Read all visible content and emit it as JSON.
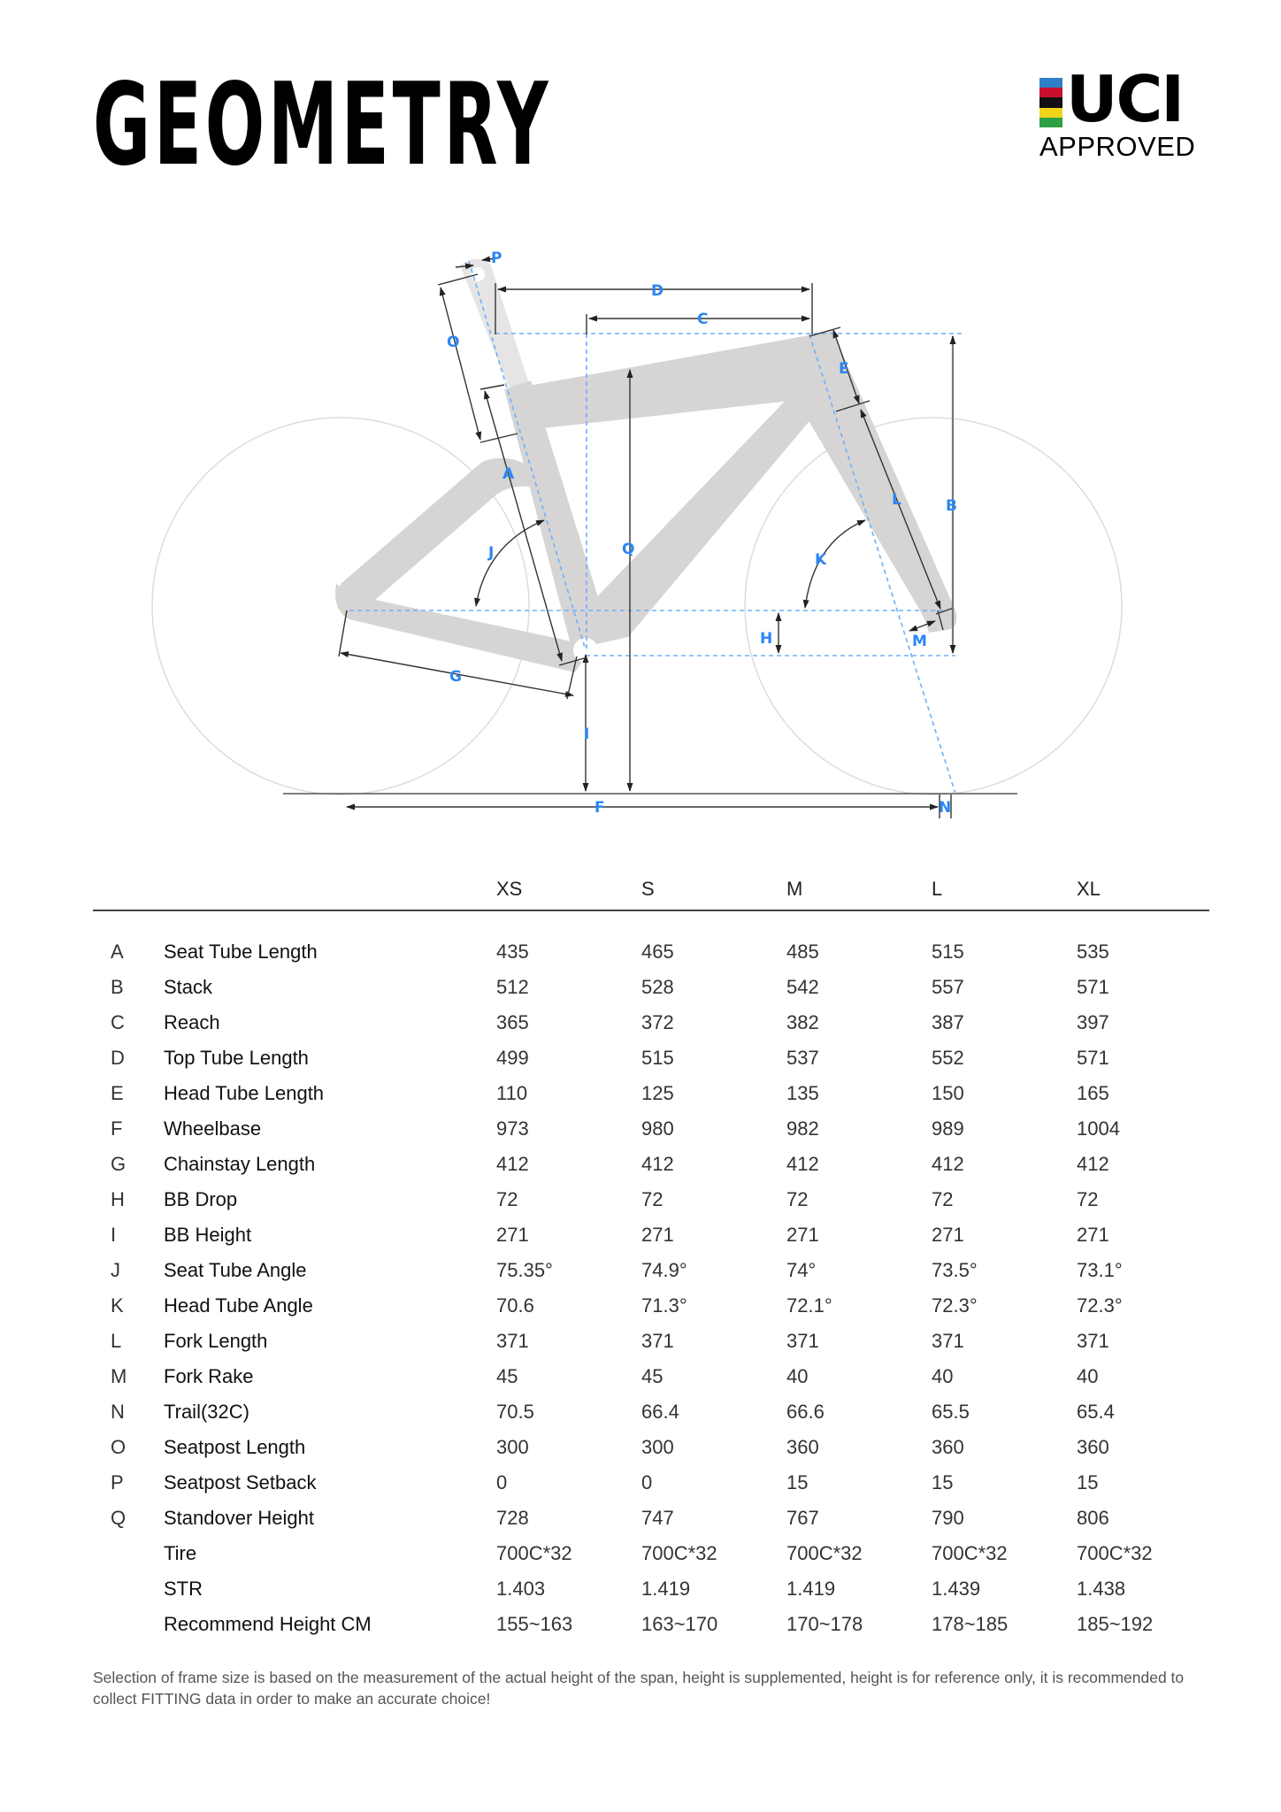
{
  "header": {
    "title": "GEOMETRY",
    "badge": {
      "brand": "UCI",
      "status": "APPROVED",
      "stripe_colors": [
        "#2f7fc6",
        "#c8102e",
        "#111111",
        "#f2d21a",
        "#2ea043"
      ]
    }
  },
  "diagram": {
    "labels": {
      "A": "A",
      "B": "B",
      "C": "C",
      "D": "D",
      "E": "E",
      "F": "F",
      "G": "G",
      "H": "H",
      "I": "I",
      "J": "J",
      "K": "K",
      "L": "L",
      "M": "M",
      "N": "N",
      "O": "O",
      "P": "P",
      "Q": "Q"
    },
    "label_color": "#2b86f4",
    "frame_color": "#d6d5d4"
  },
  "table": {
    "sizes": [
      "XS",
      "S",
      "M",
      "L",
      "XL"
    ],
    "rows": [
      {
        "letter": "A",
        "name": "Seat Tube Length",
        "values": [
          "435",
          "465",
          "485",
          "515",
          "535"
        ]
      },
      {
        "letter": "B",
        "name": "Stack",
        "values": [
          "512",
          "528",
          "542",
          "557",
          "571"
        ]
      },
      {
        "letter": "C",
        "name": "Reach",
        "values": [
          "365",
          "372",
          "382",
          "387",
          "397"
        ]
      },
      {
        "letter": "D",
        "name": "Top Tube Length",
        "values": [
          "499",
          "515",
          "537",
          "552",
          "571"
        ]
      },
      {
        "letter": "E",
        "name": "Head Tube Length",
        "values": [
          "110",
          "125",
          "135",
          "150",
          "165"
        ]
      },
      {
        "letter": "F",
        "name": "Wheelbase",
        "values": [
          "973",
          "980",
          "982",
          "989",
          "1004"
        ]
      },
      {
        "letter": "G",
        "name": "Chainstay Length",
        "values": [
          "412",
          "412",
          "412",
          "412",
          "412"
        ]
      },
      {
        "letter": "H",
        "name": "BB Drop",
        "values": [
          "72",
          "72",
          "72",
          "72",
          "72"
        ]
      },
      {
        "letter": "I",
        "name": "BB Height",
        "values": [
          "271",
          "271",
          "271",
          "271",
          "271"
        ]
      },
      {
        "letter": "J",
        "name": "Seat Tube Angle",
        "values": [
          "75.35°",
          "74.9°",
          "74°",
          "73.5°",
          "73.1°"
        ]
      },
      {
        "letter": "K",
        "name": "Head Tube Angle",
        "values": [
          "70.6",
          "71.3°",
          "72.1°",
          "72.3°",
          "72.3°"
        ]
      },
      {
        "letter": "L",
        "name": "Fork Length",
        "values": [
          "371",
          "371",
          "371",
          "371",
          "371"
        ]
      },
      {
        "letter": "M",
        "name": "Fork Rake",
        "values": [
          "45",
          "45",
          "40",
          "40",
          "40"
        ]
      },
      {
        "letter": "N",
        "name": "Trail(32C)",
        "values": [
          "70.5",
          "66.4",
          "66.6",
          "65.5",
          "65.4"
        ]
      },
      {
        "letter": "O",
        "name": "Seatpost Length",
        "values": [
          "300",
          "300",
          "360",
          "360",
          "360"
        ]
      },
      {
        "letter": "P",
        "name": "Seatpost Setback",
        "values": [
          "0",
          "0",
          "15",
          "15",
          "15"
        ]
      },
      {
        "letter": "Q",
        "name": "Standover Height",
        "values": [
          "728",
          "747",
          "767",
          "790",
          "806"
        ]
      },
      {
        "letter": "",
        "name": "Tire",
        "values": [
          "700C*32",
          "700C*32",
          "700C*32",
          "700C*32",
          "700C*32"
        ]
      },
      {
        "letter": "",
        "name": "STR",
        "values": [
          "1.403",
          "1.419",
          "1.419",
          "1.439",
          "1.438"
        ]
      },
      {
        "letter": "",
        "name": "Recommend Height CM",
        "values": [
          "155~163",
          "163~170",
          "170~178",
          "178~185",
          "185~192"
        ]
      }
    ]
  },
  "footnote": "Selection of frame size is based on the measurement of the actual height of the span, height is supplemented, height is for reference only, it is recommended to collect FITTING data in order to make an accurate choice!"
}
